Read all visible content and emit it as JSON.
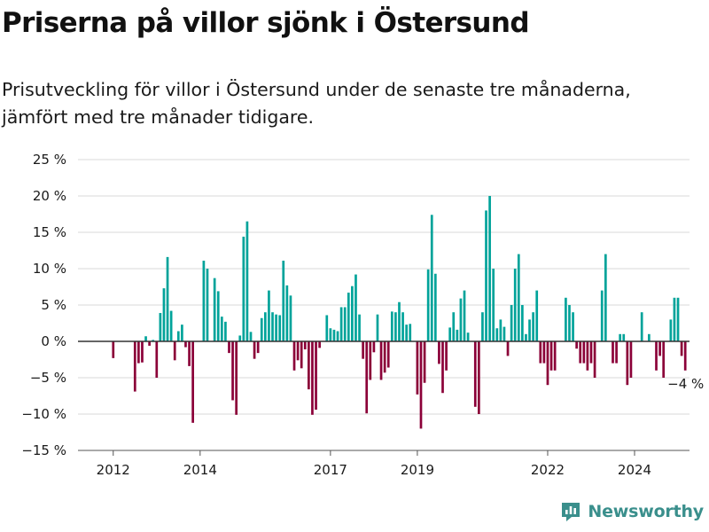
{
  "header": {
    "title": "Priserna på villor sjönk i Östersund",
    "subtitle": "Prisutveckling för villor i Östersund under de senaste tre månaderna, jämfört med tre månader tidigare."
  },
  "brand": {
    "name": "Newsworthy",
    "color": "#3a8f8c"
  },
  "colors": {
    "positive": "#00a39a",
    "negative": "#8b0038",
    "grid": "#d9d9d9",
    "zero_line": "#333333",
    "text": "#1a1a1a"
  },
  "chart_data": {
    "type": "bar",
    "unit": "%",
    "x_start": "2011-11",
    "frequency": "monthly",
    "ylim": [
      -15,
      25
    ],
    "yticks": [
      -15,
      -10,
      -5,
      0,
      5,
      10,
      15,
      20,
      25
    ],
    "ytick_labels": [
      "−15 %",
      "−10 %",
      "−5 %",
      "0 %",
      "5 %",
      "10 %",
      "15 %",
      "20 %",
      "25 %"
    ],
    "xticks": [
      {
        "label": "2012",
        "date": "2012-01"
      },
      {
        "label": "2014",
        "date": "2014-01"
      },
      {
        "label": "2017",
        "date": "2017-01"
      },
      {
        "label": "2019",
        "date": "2019-01"
      },
      {
        "label": "2022",
        "date": "2022-01"
      },
      {
        "label": "2024",
        "date": "2024-01"
      }
    ],
    "values": [
      0,
      0,
      -2.3,
      0,
      0,
      0,
      0,
      0,
      -6.9,
      -3,
      -2.9,
      0.7,
      -0.6,
      0.2,
      -5,
      3.9,
      7.3,
      11.6,
      4.2,
      -2.6,
      1.4,
      2.3,
      -0.8,
      -3.4,
      -11.2,
      0,
      0,
      11.1,
      10,
      0,
      8.7,
      6.9,
      3.4,
      2.7,
      -1.6,
      -8.1,
      -10.1,
      0.8,
      14.4,
      16.5,
      1.3,
      -2.4,
      -1.6,
      3.2,
      4,
      7,
      4,
      3.7,
      3.6,
      11.1,
      7.7,
      6.3,
      -4,
      -2.6,
      -3.7,
      -1.1,
      -6.6,
      -10.1,
      -9.4,
      -0.9,
      0,
      3.6,
      1.8,
      1.6,
      1.4,
      4.7,
      4.7,
      6.7,
      7.6,
      9.2,
      3.7,
      -2.4,
      -9.9,
      -5.3,
      -1.5,
      3.7,
      -5.3,
      -4.3,
      -3.6,
      4.1,
      4,
      5.4,
      4,
      2.3,
      2.4,
      0,
      -7.3,
      -12,
      -5.7,
      9.9,
      17.4,
      9.3,
      -3.1,
      -7.1,
      -4,
      1.9,
      4,
      1.6,
      5.9,
      7,
      1.2,
      0,
      -9,
      -10,
      4,
      18,
      20,
      10,
      1.8,
      3,
      2,
      -2,
      5,
      10,
      12,
      5,
      1,
      3,
      4,
      7,
      -3,
      -3,
      -6,
      -4,
      -4,
      0,
      0,
      6,
      5,
      4,
      -1,
      -3,
      -3,
      -4,
      -3,
      -5,
      0,
      7,
      12,
      0,
      -3,
      -3,
      1,
      1,
      -6,
      -5,
      0,
      0,
      4,
      0,
      1,
      0,
      -4,
      -2,
      -5,
      0,
      3,
      6,
      6,
      -2,
      -4
    ],
    "last_value_label": "−4 %"
  }
}
